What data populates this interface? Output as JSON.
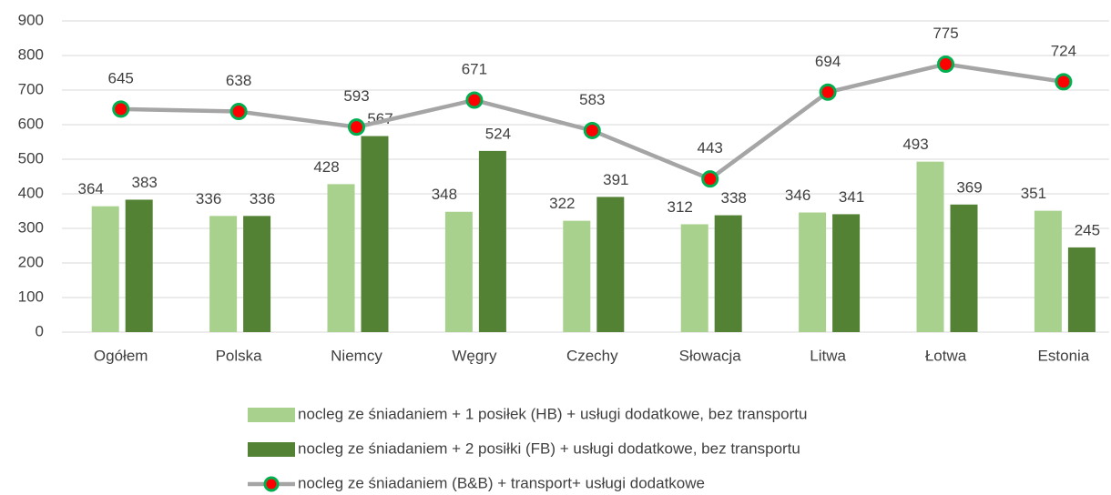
{
  "chart_data": {
    "type": "bar-line",
    "categories": [
      "Ogółem",
      "Polska",
      "Niemcy",
      "Węgry",
      "Czechy",
      "Słowacja",
      "Litwa",
      "Łotwa",
      "Estonia"
    ],
    "series": [
      {
        "name": "nocleg ze śniadaniem + 1 posiłek (HB) + usługi dodatkowe, bez transportu",
        "type": "bar",
        "color": "#a9d18e",
        "values": [
          364,
          336,
          428,
          348,
          322,
          312,
          346,
          493,
          351
        ]
      },
      {
        "name": "nocleg ze śniadaniem + 2 posiłki (FB) + usługi dodatkowe, bez transportu",
        "type": "bar",
        "color": "#548235",
        "values": [
          383,
          336,
          567,
          524,
          391,
          338,
          341,
          369,
          245
        ]
      },
      {
        "name": "nocleg ze śniadaniem (B&B) + transport+ usługi dodatkowe",
        "type": "line",
        "color": "#a5a5a5",
        "marker_color": "#ff0000",
        "marker_edge_color": "#00b050",
        "values": [
          645,
          638,
          593,
          671,
          583,
          443,
          694,
          775,
          724
        ]
      }
    ],
    "ylim": [
      0,
      900
    ],
    "yticks": [
      0,
      100,
      200,
      300,
      400,
      500,
      600,
      700,
      800,
      900
    ],
    "grid": true,
    "legend": "bottom"
  }
}
